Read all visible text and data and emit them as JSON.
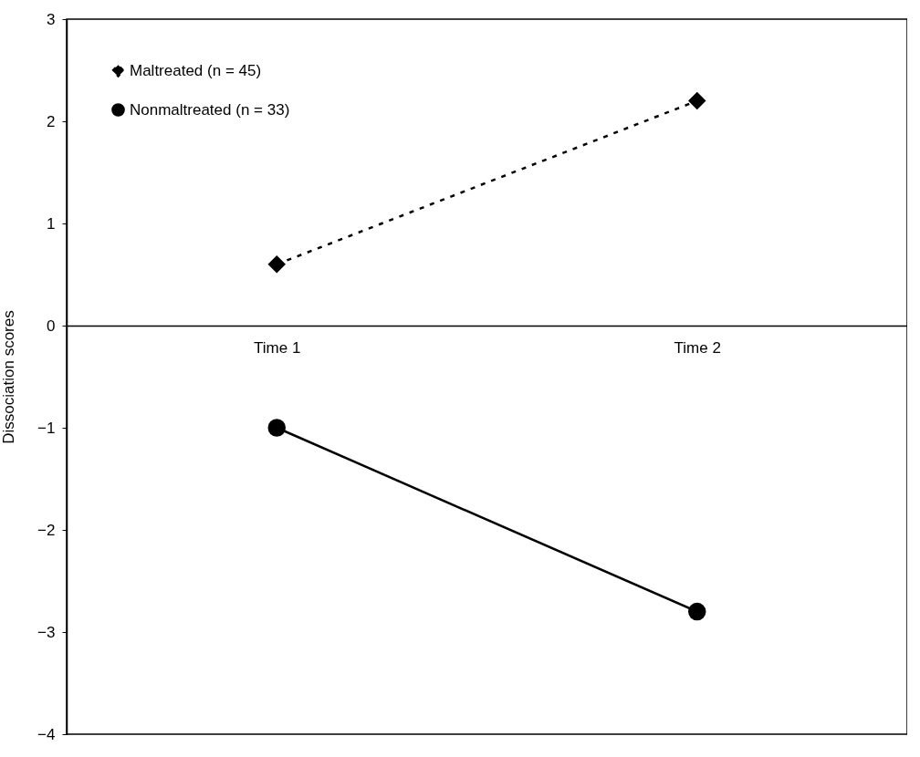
{
  "chart_data": {
    "type": "line",
    "ylabel": "Dissociation scores",
    "categories": [
      "Time 1",
      "Time 2"
    ],
    "series": [
      {
        "name": "Maltreated (n = 45)",
        "color": "#000000",
        "values": [
          0.6,
          2.2
        ],
        "line_style": "dashed",
        "marker": "diamond"
      },
      {
        "name": "Nonmaltreated (n = 33)",
        "color": "#000000",
        "values": [
          -1.0,
          -2.8
        ],
        "line_style": "solid",
        "marker": "circle"
      }
    ],
    "ylim": [
      -4,
      3
    ],
    "yticks": [
      -4,
      -3,
      -2,
      -1,
      0,
      1,
      2,
      3
    ],
    "legend": "top left",
    "grid": false
  }
}
